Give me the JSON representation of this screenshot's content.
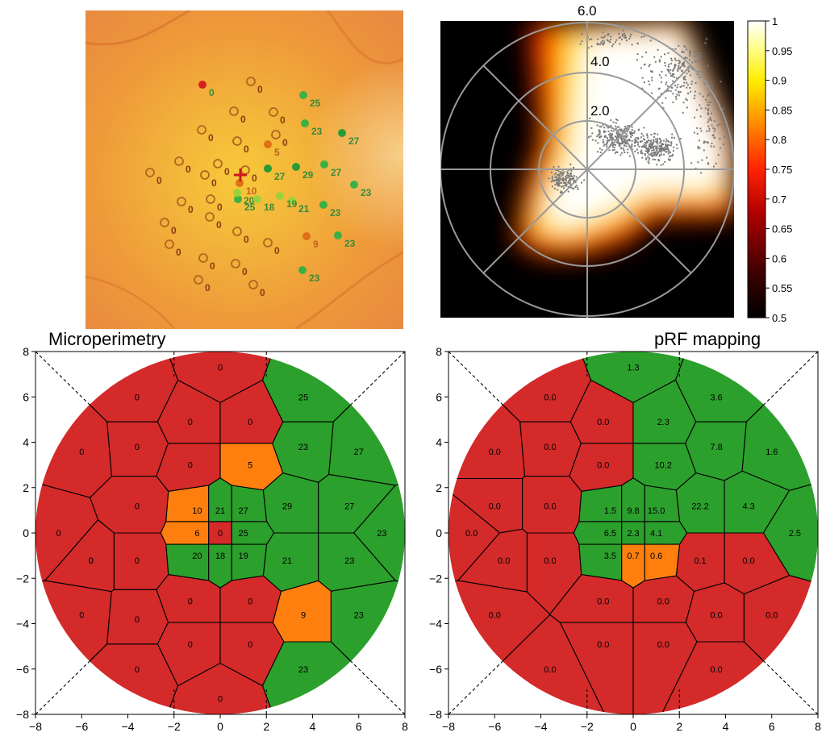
{
  "chart_data": [
    {
      "type": "heatmap",
      "panel": "fundus-microperimetry",
      "points": [
        {
          "v": "0",
          "c": "#d42020"
        },
        {
          "v": "0",
          "c": "none"
        },
        {
          "v": "25",
          "c": "#3cb043"
        },
        {
          "v": "0",
          "c": "none"
        },
        {
          "v": "0",
          "c": "none"
        },
        {
          "v": "23",
          "c": "#3cb043"
        },
        {
          "v": "27",
          "c": "#2a9a35"
        },
        {
          "v": "0",
          "c": "none"
        },
        {
          "v": "0",
          "c": "none"
        },
        {
          "v": "0",
          "c": "none"
        },
        {
          "v": "5",
          "c": "#e07018"
        },
        {
          "v": "0",
          "c": "none"
        },
        {
          "v": "0",
          "c": "none"
        },
        {
          "v": "0",
          "c": "none"
        },
        {
          "v": "29",
          "c": "#2a9a35"
        },
        {
          "v": "27",
          "c": "#3cb043"
        },
        {
          "v": "0",
          "c": "none"
        },
        {
          "v": "0",
          "c": "none"
        },
        {
          "v": "10",
          "c": "#e07018"
        },
        {
          "v": "27",
          "c": "#2a9a35"
        },
        {
          "v": "23",
          "c": "#3cb043"
        },
        {
          "v": "0",
          "c": "none"
        },
        {
          "v": "0",
          "c": "none"
        },
        {
          "v": "25",
          "c": "#3cb043"
        },
        {
          "v": "21",
          "c": "#9bd23c"
        },
        {
          "v": "23",
          "c": "#3cb043"
        },
        {
          "v": "20",
          "c": "#9bd23c"
        },
        {
          "v": "18",
          "c": "#9bd23c"
        },
        {
          "v": "19",
          "c": "#9bd23c"
        },
        {
          "v": "0",
          "c": "none"
        },
        {
          "v": "0",
          "c": "none"
        },
        {
          "v": "0",
          "c": "none"
        },
        {
          "v": "9",
          "c": "#e07018"
        },
        {
          "v": "23",
          "c": "#3cb043"
        },
        {
          "v": "0",
          "c": "none"
        },
        {
          "v": "0",
          "c": "none"
        },
        {
          "v": "0",
          "c": "none"
        },
        {
          "v": "0",
          "c": "none"
        },
        {
          "v": "0",
          "c": "none"
        },
        {
          "v": "23",
          "c": "#3cb043"
        },
        {
          "v": "0",
          "c": "none"
        }
      ]
    },
    {
      "type": "heatmap",
      "panel": "polar-prf-coverage",
      "r_ticks": [
        "2.0",
        "4.0",
        "6.0"
      ],
      "colorbar": {
        "ticks": [
          "1",
          "0.95",
          "0.9",
          "0.85",
          "0.8",
          "0.75",
          "0.7",
          "0.65",
          "0.6",
          "0.55",
          "0.5"
        ],
        "min": 0.5,
        "max": 1
      }
    },
    {
      "type": "heatmap",
      "title": "Microperimetry",
      "xlim": [
        -8,
        8
      ],
      "ylim": [
        -8,
        8
      ],
      "xticks": [
        "−8",
        "−6",
        "−4",
        "−2",
        "0",
        "2",
        "4",
        "6",
        "8"
      ],
      "yticks": [
        "8",
        "6",
        "4",
        "2",
        "0",
        "−2",
        "−4",
        "−6",
        "−8"
      ],
      "cells": [
        {
          "label": "0",
          "c": "red"
        },
        {
          "label": "25",
          "c": "green"
        },
        {
          "label": "0",
          "c": "red"
        },
        {
          "label": "0",
          "c": "red"
        },
        {
          "label": "0",
          "c": "red"
        },
        {
          "label": "0",
          "c": "red"
        },
        {
          "label": "23",
          "c": "green"
        },
        {
          "label": "27",
          "c": "green"
        },
        {
          "label": "0",
          "c": "red"
        },
        {
          "label": "5",
          "c": "orange"
        },
        {
          "label": "0",
          "c": "red"
        },
        {
          "label": "0",
          "c": "red"
        },
        {
          "label": "10",
          "c": "orange"
        },
        {
          "label": "21",
          "c": "green"
        },
        {
          "label": "27",
          "c": "green"
        },
        {
          "label": "29",
          "c": "green"
        },
        {
          "label": "27",
          "c": "green"
        },
        {
          "label": "0",
          "c": "red"
        },
        {
          "label": "6",
          "c": "orange"
        },
        {
          "label": "0",
          "c": "red"
        },
        {
          "label": "25",
          "c": "green"
        },
        {
          "label": "23",
          "c": "green"
        },
        {
          "label": "0",
          "c": "red"
        },
        {
          "label": "0",
          "c": "red"
        },
        {
          "label": "20",
          "c": "green"
        },
        {
          "label": "18",
          "c": "green"
        },
        {
          "label": "19",
          "c": "green"
        },
        {
          "label": "21",
          "c": "green"
        },
        {
          "label": "23",
          "c": "green"
        },
        {
          "label": "0",
          "c": "red"
        },
        {
          "label": "0",
          "c": "red"
        },
        {
          "label": "0",
          "c": "red"
        },
        {
          "label": "9",
          "c": "orange"
        },
        {
          "label": "23",
          "c": "green"
        },
        {
          "label": "0",
          "c": "red"
        },
        {
          "label": "0",
          "c": "red"
        },
        {
          "label": "0",
          "c": "red"
        },
        {
          "label": "23",
          "c": "green"
        },
        {
          "label": "0",
          "c": "red"
        },
        {
          "label": "0",
          "c": "red"
        },
        {
          "label": "0",
          "c": "red"
        }
      ]
    },
    {
      "type": "heatmap",
      "title": "pRF mapping",
      "xlim": [
        -8,
        8
      ],
      "ylim": [
        -8,
        8
      ],
      "xticks": [
        "−8",
        "−6",
        "−4",
        "−2",
        "0",
        "2",
        "4",
        "6",
        "8"
      ],
      "yticks": [
        "8",
        "6",
        "4",
        "2",
        "0",
        "−2",
        "−4",
        "−6",
        "−8"
      ],
      "cells": [
        {
          "label": "1.3",
          "c": "green"
        },
        {
          "label": "0.0",
          "c": "red"
        },
        {
          "label": "3.6",
          "c": "green"
        },
        {
          "label": "0.0",
          "c": "red"
        },
        {
          "label": "2.3",
          "c": "green"
        },
        {
          "label": "0.0",
          "c": "red"
        },
        {
          "label": "7.8",
          "c": "green"
        },
        {
          "label": "0.0",
          "c": "red"
        },
        {
          "label": "1.6",
          "c": "green"
        },
        {
          "label": "0.0",
          "c": "red"
        },
        {
          "label": "10.2",
          "c": "green"
        },
        {
          "label": "0.0",
          "c": "red"
        },
        {
          "label": "0.0",
          "c": "red"
        },
        {
          "label": "1.5",
          "c": "green"
        },
        {
          "label": "9.8",
          "c": "green"
        },
        {
          "label": "15.0",
          "c": "green"
        },
        {
          "label": "22.2",
          "c": "green"
        },
        {
          "label": "4.3",
          "c": "green"
        },
        {
          "label": "0.0",
          "c": "red"
        },
        {
          "label": "6.5",
          "c": "green"
        },
        {
          "label": "2.3",
          "c": "green"
        },
        {
          "label": "4.1",
          "c": "green"
        },
        {
          "label": "2.5",
          "c": "green"
        },
        {
          "label": "0.0",
          "c": "red"
        },
        {
          "label": "0.0",
          "c": "red"
        },
        {
          "label": "3.5",
          "c": "green"
        },
        {
          "label": "0.7",
          "c": "orange"
        },
        {
          "label": "0.6",
          "c": "orange"
        },
        {
          "label": "0.1",
          "c": "red"
        },
        {
          "label": "0.0",
          "c": "red"
        },
        {
          "label": "0.0",
          "c": "red"
        },
        {
          "label": "0.0",
          "c": "red"
        },
        {
          "label": "0.0",
          "c": "red"
        },
        {
          "label": "0.0",
          "c": "red"
        },
        {
          "label": "0.0",
          "c": "red"
        },
        {
          "label": "0.0",
          "c": "red"
        },
        {
          "label": "0.0",
          "c": "red"
        },
        {
          "label": "0.0",
          "c": "red"
        },
        {
          "label": "0.0",
          "c": "red"
        }
      ]
    }
  ],
  "colors": {
    "red": "#d42a2a",
    "green": "#2ca02c",
    "orange": "#ff7f0e",
    "edge": "#000000"
  }
}
